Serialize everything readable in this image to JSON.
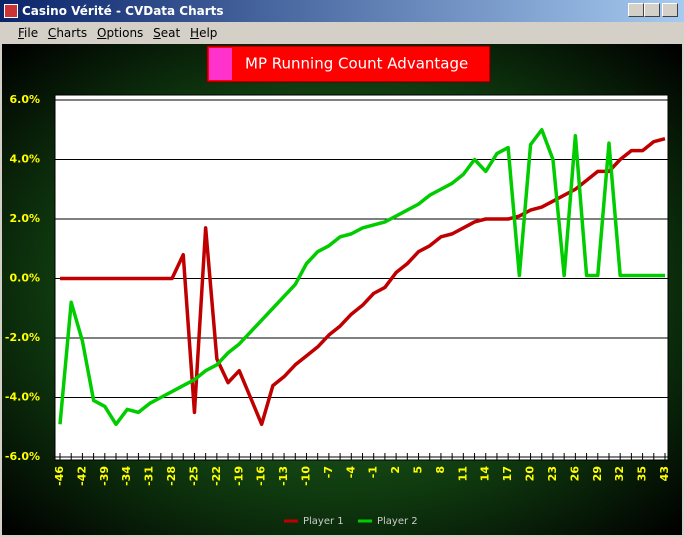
{
  "window": {
    "title": "Casino Vérité - CVData Charts"
  },
  "menu": [
    "File",
    "Charts",
    "Options",
    "Seat",
    "Help"
  ],
  "chart_data": {
    "type": "line",
    "title": "MP Running Count Advantage",
    "categories": [
      "-46",
      null,
      "-42",
      null,
      "-39",
      null,
      "-34",
      null,
      "-31",
      null,
      "-28",
      null,
      "-25",
      null,
      "-22",
      null,
      "-19",
      null,
      "-16",
      null,
      "-13",
      null,
      "-10",
      null,
      "-7",
      null,
      "-4",
      null,
      "-1",
      null,
      "2",
      null,
      "5",
      null,
      "8",
      null,
      "11",
      null,
      "14",
      null,
      "17",
      null,
      "20",
      null,
      "23",
      null,
      "26",
      null,
      "29",
      null,
      "32",
      null,
      "35",
      null,
      "43"
    ],
    "series": [
      {
        "name": "Player 1",
        "color": "#c00000",
        "values": [
          0,
          0,
          0,
          0,
          0,
          0,
          0,
          0,
          0,
          0,
          0,
          0.8,
          -4.5,
          1.7,
          -2.7,
          -3.5,
          -3.1,
          -4.0,
          -4.9,
          -3.6,
          -3.3,
          -2.9,
          -2.6,
          -2.3,
          -1.9,
          -1.6,
          -1.2,
          -0.9,
          -0.5,
          -0.3,
          0.2,
          0.5,
          0.9,
          1.1,
          1.4,
          1.5,
          1.7,
          1.9,
          2.0,
          2.0,
          2.0,
          2.1,
          2.3,
          2.4,
          2.6,
          2.8,
          3.0,
          3.3,
          3.6,
          3.6,
          4.0,
          4.3,
          4.3,
          4.6,
          4.7
        ]
      },
      {
        "name": "Player 2",
        "color": "#00cc00",
        "values": [
          -4.9,
          -0.8,
          -2.1,
          -4.1,
          -4.3,
          -4.9,
          -4.4,
          -4.5,
          -4.2,
          -4.0,
          -3.8,
          -3.6,
          -3.4,
          -3.1,
          -2.9,
          -2.5,
          -2.2,
          -1.8,
          -1.4,
          -1.0,
          -0.6,
          -0.2,
          0.5,
          0.9,
          1.1,
          1.4,
          1.5,
          1.7,
          1.8,
          1.9,
          2.1,
          2.3,
          2.5,
          2.8,
          3.0,
          3.2,
          3.5,
          4.0,
          3.6,
          4.2,
          4.4,
          0.1,
          4.5,
          5.0,
          4.0,
          0.1,
          4.8,
          0.1,
          0.1,
          4.55,
          0.1,
          0.1,
          0.1,
          0.1,
          0.1
        ]
      }
    ],
    "ylim": [
      -6,
      6
    ],
    "yticks": [
      {
        "value": -6,
        "label": "-6.0%"
      },
      {
        "value": -4,
        "label": "-4.0%"
      },
      {
        "value": -2,
        "label": "-2.0%"
      },
      {
        "value": 0,
        "label": "0.0%"
      },
      {
        "value": 2,
        "label": "2.0%"
      },
      {
        "value": 4,
        "label": "4.0%"
      },
      {
        "value": 6,
        "label": "6.0%"
      }
    ],
    "grid": true,
    "legend": "bottom"
  }
}
